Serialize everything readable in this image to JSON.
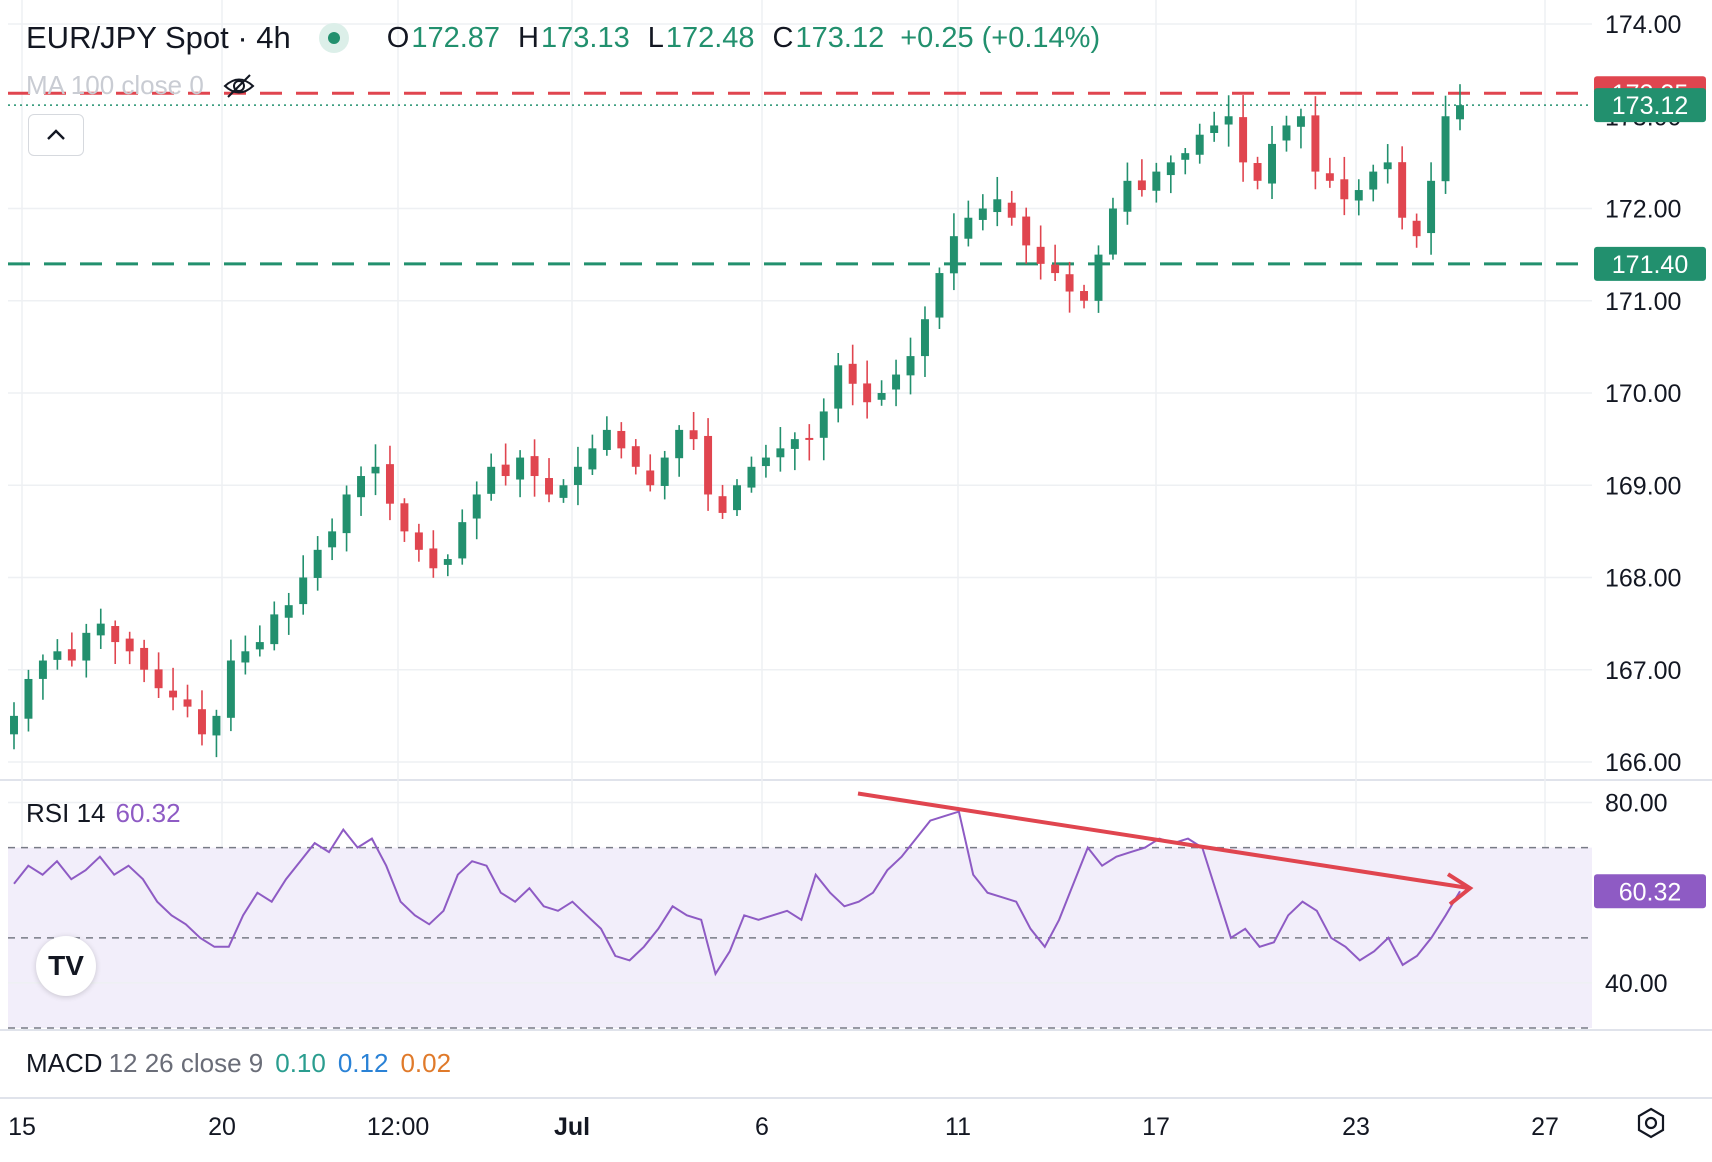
{
  "header": {
    "symbol": "EUR/JPY Spot · 4h",
    "open_key": "O",
    "open": "172.87",
    "high_key": "H",
    "high": "173.13",
    "low_key": "L",
    "low": "172.48",
    "close_key": "C",
    "close": "173.12",
    "change": "+0.25 (+0.14%)",
    "status_color": "#22906e"
  },
  "ma_indicator": {
    "label": "MA 100 close 0",
    "visibility_icon": "eye-off-icon"
  },
  "collapse_icon": "chevron-up-icon",
  "colors": {
    "up": "#22906e",
    "down": "#e0454f",
    "rsi": "#8e5bc4",
    "trend": "#e0454f",
    "grid": "#eef0f3"
  },
  "chart_data": [
    {
      "type": "candlestick",
      "title": "EUR/JPY Spot · 4h",
      "ylim": [
        166.0,
        174.0
      ],
      "y_ticks": [
        "174.00",
        "172.00",
        "171.00",
        "170.00",
        "169.00",
        "168.00",
        "167.00",
        "166.00"
      ],
      "x_ticks": [
        "15",
        "20",
        "12:00",
        "Jul",
        "6",
        "11",
        "17",
        "23",
        "27"
      ],
      "grid": true,
      "price_labels": [
        {
          "text": "173.25",
          "value": 173.25,
          "color": "#e0454f",
          "line": "dashed"
        },
        {
          "text": "173.12",
          "value": 173.12,
          "color": "#22906e",
          "line": "dotted"
        },
        {
          "text": "171.40",
          "value": 171.4,
          "color": "#22906e",
          "line": "dashed"
        }
      ],
      "close_series": [
        166.5,
        166.9,
        167.1,
        167.2,
        167.1,
        167.4,
        167.5,
        167.3,
        167.2,
        167.0,
        166.8,
        166.7,
        166.6,
        166.3,
        166.5,
        167.1,
        167.2,
        167.3,
        167.6,
        167.7,
        168.0,
        168.3,
        168.5,
        168.9,
        169.1,
        169.2,
        168.8,
        168.5,
        168.3,
        168.1,
        168.2,
        168.6,
        168.9,
        169.2,
        169.1,
        169.3,
        169.1,
        168.9,
        169.0,
        169.2,
        169.4,
        169.6,
        169.4,
        169.2,
        169.0,
        169.3,
        169.6,
        169.5,
        168.9,
        168.7,
        169.0,
        169.2,
        169.3,
        169.4,
        169.5,
        169.5,
        169.8,
        170.3,
        170.1,
        169.9,
        170.0,
        170.2,
        170.4,
        170.8,
        171.3,
        171.7,
        171.9,
        172.0,
        172.1,
        171.9,
        171.6,
        171.4,
        171.3,
        171.1,
        171.0,
        171.5,
        172.0,
        172.3,
        172.2,
        172.4,
        172.5,
        172.6,
        172.8,
        172.9,
        173.0,
        172.5,
        172.3,
        172.7,
        172.9,
        173.0,
        172.4,
        172.3,
        172.1,
        172.2,
        172.4,
        172.5,
        171.9,
        171.7,
        172.3,
        173.0,
        173.12
      ]
    },
    {
      "type": "line",
      "title": "RSI 14",
      "current": "60.32",
      "ylim": [
        30,
        85
      ],
      "y_ticks": [
        "80.00",
        "40.00"
      ],
      "bands": {
        "upper": 70,
        "mid": 50,
        "lower": 30
      },
      "values": [
        62,
        66,
        64,
        67,
        63,
        65,
        68,
        64,
        66,
        63,
        58,
        55,
        53,
        50,
        48,
        48,
        55,
        60,
        58,
        63,
        67,
        71,
        69,
        74,
        70,
        72,
        66,
        58,
        55,
        53,
        56,
        64,
        67,
        66,
        60,
        58,
        61,
        57,
        56,
        58,
        55,
        52,
        46,
        45,
        48,
        52,
        57,
        55,
        54,
        42,
        47,
        55,
        54,
        55,
        56,
        54,
        64,
        60,
        57,
        58,
        60,
        65,
        68,
        72,
        76,
        77,
        78,
        64,
        60,
        59,
        58,
        52,
        48,
        54,
        62,
        70,
        66,
        68,
        69,
        70,
        72,
        71,
        72,
        70,
        60,
        50,
        52,
        48,
        49,
        55,
        58,
        56,
        50,
        48,
        45,
        47,
        50,
        44,
        46,
        50,
        55,
        60.32
      ],
      "trendline": {
        "from_value": 82,
        "to_value": 61,
        "color": "#e0454f"
      }
    },
    {
      "type": "line",
      "title": "MACD",
      "params": "12 26 close 9",
      "values": [
        "0.10",
        "0.12",
        "0.02"
      ]
    }
  ],
  "logo_text": "TV",
  "settings_icon": "gear-icon"
}
